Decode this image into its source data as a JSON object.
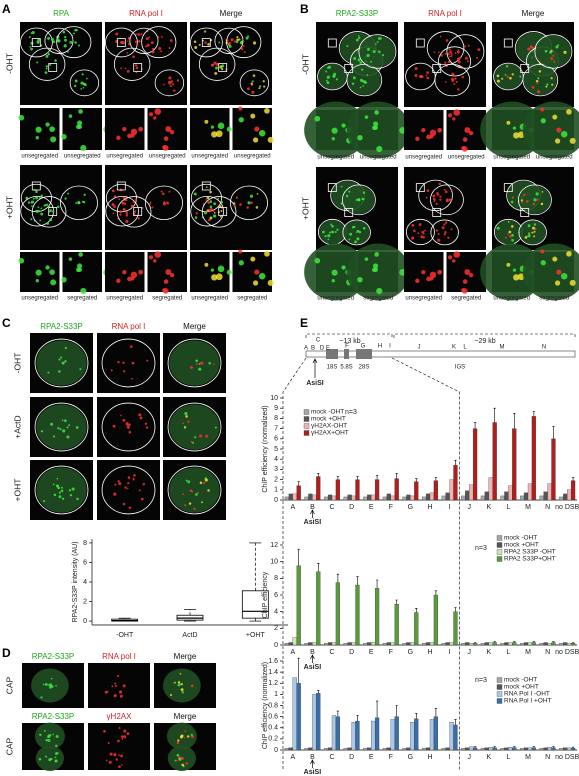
{
  "panels": {
    "A": {
      "label": "A",
      "columns": [
        "RPA",
        "RNA pol I",
        "Merge"
      ],
      "rows": [
        "-OHT",
        "+OHT"
      ],
      "captions": [
        [
          "unsegregated",
          "unsegregated",
          "unsegregated",
          "unsegregated",
          "unsegregated",
          "unsegregated"
        ],
        [
          "unsegregated",
          "segregated",
          "unsegregated",
          "segregated",
          "unsegregated",
          "segregated"
        ]
      ]
    },
    "B": {
      "label": "B",
      "columns": [
        "RPA2-S33P",
        "RNA pol I",
        "Merge"
      ],
      "rows": [
        "-OHT",
        "+OHT"
      ],
      "captions": [
        [
          "unsegregated",
          "unsegregated",
          "unsegregated",
          "unsegregated",
          "unsegregated",
          "unsegregated"
        ],
        [
          "unsegregated",
          "segregated",
          "unsegregated",
          "segregated",
          "unsegregated",
          "segregated"
        ]
      ]
    },
    "C": {
      "label": "C",
      "columns": [
        "RPA2-S33P",
        "RNA pol I",
        "Merge"
      ],
      "rows": [
        "-OHT",
        "+ActD",
        "+OHT"
      ]
    },
    "D": {
      "label": "D",
      "blocks": [
        {
          "columns": [
            "RPA2-S33P",
            "RNA pol I",
            "Merge"
          ],
          "row": "CAP"
        },
        {
          "columns": [
            "RPA2-S33P",
            "γH2AX",
            "Merge"
          ],
          "row": "CAP"
        }
      ]
    },
    "E": {
      "label": "E",
      "diagram": {
        "size_labels": [
          "~13 kb",
          "~29 kb"
        ],
        "sites": [
          "A",
          "B",
          "C",
          "D",
          "E",
          "F",
          "G",
          "H",
          "I",
          "J",
          "K",
          "L",
          "M",
          "N"
        ],
        "genes": [
          "18S",
          "5.8S",
          "28S"
        ],
        "region": "IGS",
        "cut_site": "AsiSI"
      }
    }
  },
  "chart_data": [
    {
      "type": "box",
      "y_label": "RPA2-S33P intensity (AU)",
      "categories": [
        "-OHT",
        "ActD",
        "+OHT"
      ],
      "boxes": [
        {
          "min": 0,
          "q1": 0,
          "median": 0.05,
          "q3": 0.2,
          "max": 0.3
        },
        {
          "min": 0,
          "q1": 0.1,
          "median": 0.3,
          "q3": 0.6,
          "max": 1.2
        },
        {
          "min": 0,
          "q1": 0.3,
          "median": 1.0,
          "q3": 3.1,
          "max": 8.0
        }
      ],
      "ylim": [
        -0.4,
        8.4
      ],
      "yticks": [
        0,
        2,
        4,
        6,
        8
      ]
    },
    {
      "type": "bar",
      "y_label": "ChIP efficiency (normalized)",
      "sample_size": "n=3",
      "annotation": "AsiSI",
      "categories": [
        "A",
        "B",
        "C",
        "D",
        "E",
        "F",
        "G",
        "H",
        "I",
        "J",
        "K",
        "L",
        "M",
        "N",
        "no DSB"
      ],
      "ylim": [
        0,
        10
      ],
      "yticks": [
        0,
        1,
        2,
        3,
        4,
        5,
        6,
        7,
        8,
        9,
        10
      ],
      "series": [
        {
          "name": "mock -OHT",
          "color": "#a6a6a6",
          "values": [
            0.3,
            0.3,
            0.3,
            0.3,
            0.3,
            0.3,
            0.3,
            0.3,
            0.4,
            0.4,
            0.4,
            0.4,
            0.4,
            0.4,
            0.3
          ]
        },
        {
          "name": "mock +OHT",
          "color": "#555555",
          "values": [
            0.6,
            0.6,
            0.5,
            0.5,
            0.5,
            0.6,
            0.5,
            0.6,
            0.7,
            0.9,
            0.8,
            0.8,
            0.7,
            0.8,
            0.6
          ]
        },
        {
          "name": "γH2AX-OHT",
          "color": "#eeb4b4",
          "values": [
            0.6,
            0.5,
            0.4,
            0.4,
            0.5,
            0.4,
            0.4,
            0.7,
            2.0,
            1.5,
            2.2,
            1.4,
            1.6,
            1.6,
            1.0
          ]
        },
        {
          "name": "γH2AX+OHT",
          "color": "#b01e1e",
          "values": [
            1.4,
            2.3,
            2.0,
            2.0,
            2.0,
            2.1,
            1.8,
            1.9,
            3.4,
            7.0,
            7.6,
            7.0,
            8.2,
            6.0,
            1.9
          ],
          "errors": [
            0.4,
            0.3,
            0.3,
            0.3,
            0.4,
            0.5,
            0.3,
            0.3,
            0.5,
            0.6,
            1.4,
            1.5,
            0.5,
            1.2,
            0.3
          ]
        }
      ]
    },
    {
      "type": "bar",
      "y_label": "ChIP efficiency",
      "sample_size": "n=3",
      "annotation": "AsiSI",
      "categories": [
        "A",
        "B",
        "C",
        "D",
        "E",
        "F",
        "G",
        "H",
        "I",
        "J",
        "K",
        "L",
        "M",
        "N",
        "no DSB"
      ],
      "ylim": [
        0,
        12
      ],
      "yticks": [
        0,
        2,
        4,
        6,
        8,
        10,
        12
      ],
      "series": [
        {
          "name": "mock -OHT",
          "color": "#a6a6a6",
          "values": [
            0.2,
            0.2,
            0.2,
            0.2,
            0.2,
            0.2,
            0.2,
            0.2,
            0.2,
            0.2,
            0.2,
            0.2,
            0.2,
            0.2,
            0.2
          ]
        },
        {
          "name": "mock +OHT",
          "color": "#555555",
          "values": [
            0.3,
            0.3,
            0.3,
            0.3,
            0.3,
            0.3,
            0.3,
            0.3,
            0.3,
            0.3,
            0.3,
            0.3,
            0.3,
            0.3,
            0.3
          ]
        },
        {
          "name": "RPA2 S33P -OHT",
          "color": "#cde3b8",
          "values": [
            0.9,
            0.3,
            0.3,
            0.3,
            0.3,
            0.3,
            0.3,
            0.3,
            0.3,
            0.2,
            0.3,
            0.3,
            0.3,
            0.2,
            0.2
          ]
        },
        {
          "name": "RPA2 S33P+OHT",
          "color": "#5b9a3c",
          "values": [
            9.5,
            8.8,
            7.5,
            7.2,
            6.8,
            4.9,
            3.9,
            6.0,
            4.0,
            0.2,
            0.3,
            0.3,
            0.3,
            0.3,
            0.2
          ],
          "errors": [
            2.0,
            1.0,
            1.0,
            1.0,
            1.0,
            0.5,
            0.5,
            0.5,
            0.5,
            0.1,
            0.1,
            0.1,
            0.1,
            0.1,
            0.1
          ]
        }
      ]
    },
    {
      "type": "bar",
      "y_label": "ChIP efficiency (normalized)",
      "sample_size": "n=3",
      "annotation": "AsiSI",
      "categories": [
        "A",
        "B",
        "C",
        "D",
        "E",
        "F",
        "G",
        "H",
        "I",
        "J",
        "K",
        "L",
        "M",
        "N",
        "no DSB"
      ],
      "ylim": [
        0,
        1.6
      ],
      "yticks": [
        0,
        0.2,
        0.4,
        0.6,
        0.8,
        1,
        1.2,
        1.4,
        1.6
      ],
      "series": [
        {
          "name": "mock -OHT",
          "color": "#a6a6a6",
          "values": [
            0.03,
            0.03,
            0.03,
            0.03,
            0.03,
            0.03,
            0.03,
            0.03,
            0.03,
            0.03,
            0.03,
            0.03,
            0.03,
            0.03,
            0.03
          ]
        },
        {
          "name": "mock +OHT",
          "color": "#555555",
          "values": [
            0.04,
            0.04,
            0.04,
            0.04,
            0.04,
            0.04,
            0.04,
            0.04,
            0.04,
            0.04,
            0.04,
            0.04,
            0.04,
            0.04,
            0.04
          ]
        },
        {
          "name": "RNA Pol I -OHT",
          "color": "#a9c8e8",
          "values": [
            1.3,
            1.0,
            0.62,
            0.5,
            0.52,
            0.55,
            0.5,
            0.55,
            0.5,
            0.06,
            0.05,
            0.05,
            0.04,
            0.05,
            0.04
          ]
        },
        {
          "name": "RNA Pol I +OHT",
          "color": "#3b6ea8",
          "values": [
            1.2,
            1.02,
            0.6,
            0.52,
            0.58,
            0.6,
            0.56,
            0.6,
            0.45,
            0.04,
            0.04,
            0.04,
            0.04,
            0.04,
            0.03
          ],
          "errors": [
            0.45,
            0.05,
            0.1,
            0.1,
            0.3,
            0.2,
            0.1,
            0.15,
            0.1,
            0.02,
            0.02,
            0.02,
            0.02,
            0.02,
            0.02
          ]
        }
      ]
    }
  ]
}
